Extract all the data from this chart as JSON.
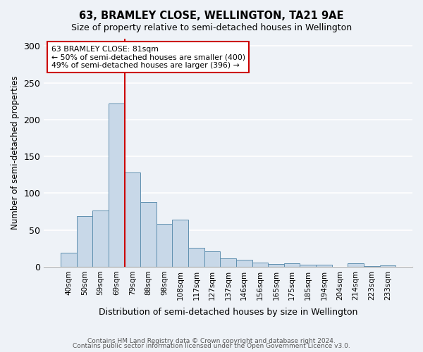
{
  "title": "63, BRAMLEY CLOSE, WELLINGTON, TA21 9AE",
  "subtitle": "Size of property relative to semi-detached houses in Wellington",
  "xlabel": "Distribution of semi-detached houses by size in Wellington",
  "ylabel": "Number of semi-detached properties",
  "categories": [
    "40sqm",
    "50sqm",
    "59sqm",
    "69sqm",
    "79sqm",
    "88sqm",
    "98sqm",
    "108sqm",
    "117sqm",
    "127sqm",
    "137sqm",
    "146sqm",
    "156sqm",
    "165sqm",
    "175sqm",
    "185sqm",
    "194sqm",
    "204sqm",
    "214sqm",
    "223sqm",
    "233sqm"
  ],
  "values": [
    19,
    69,
    76,
    222,
    128,
    88,
    58,
    64,
    26,
    21,
    11,
    9,
    6,
    4,
    5,
    3,
    3,
    0,
    5,
    1,
    2
  ],
  "bar_color": "#c8d8e8",
  "bar_edge_color": "#6090b0",
  "vline_color": "#cc0000",
  "vline_x_index": 4,
  "ylim": [
    0,
    310
  ],
  "yticks": [
    0,
    50,
    100,
    150,
    200,
    250,
    300
  ],
  "annotation_title": "63 BRAMLEY CLOSE: 81sqm",
  "annotation_line1": "← 50% of semi-detached houses are smaller (400)",
  "annotation_line2": "49% of semi-detached houses are larger (396) →",
  "annotation_box_facecolor": "#ffffff",
  "annotation_box_edgecolor": "#cc0000",
  "footer_line1": "Contains HM Land Registry data © Crown copyright and database right 2024.",
  "footer_line2": "Contains public sector information licensed under the Open Government Licence v3.0.",
  "background_color": "#eef2f7",
  "grid_color": "#ffffff"
}
